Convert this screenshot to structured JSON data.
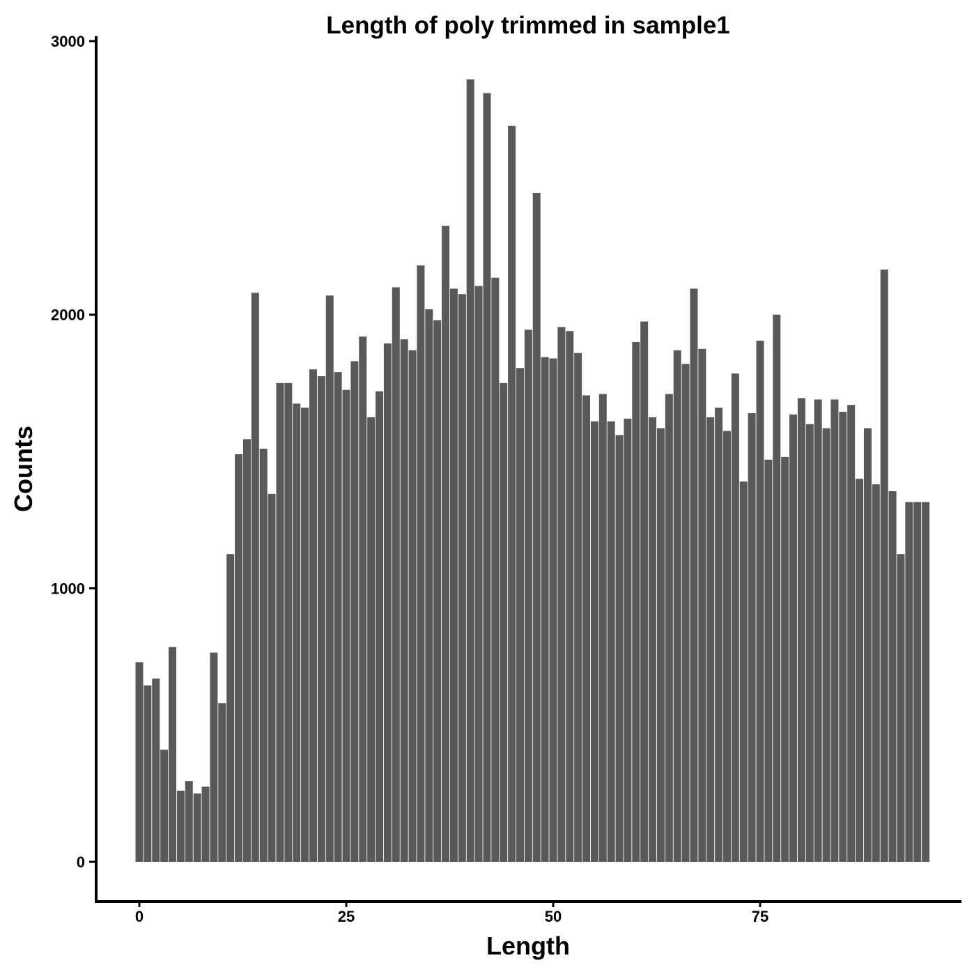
{
  "chart_data": {
    "type": "bar",
    "title": "Length of poly trimmed in  sample1",
    "xlabel": "Length",
    "ylabel": "Counts",
    "x_ticks": [
      "0",
      "25",
      "50",
      "75"
    ],
    "y_ticks": [
      "0",
      "1000",
      "2000",
      "3000"
    ],
    "xlim": [
      -5,
      100
    ],
    "ylim": [
      -140,
      3000
    ],
    "grid": false,
    "bar_color": "#595959",
    "x": [
      0,
      1,
      2,
      3,
      4,
      5,
      6,
      7,
      8,
      9,
      10,
      11,
      12,
      13,
      14,
      15,
      16,
      17,
      18,
      19,
      20,
      21,
      22,
      23,
      24,
      25,
      26,
      27,
      28,
      29,
      30,
      31,
      32,
      33,
      34,
      35,
      36,
      37,
      38,
      39,
      40,
      41,
      42,
      43,
      44,
      45,
      46,
      47,
      48,
      49,
      50,
      51,
      52,
      53,
      54,
      55,
      56,
      57,
      58,
      59,
      60,
      61,
      62,
      63,
      64,
      65,
      66,
      67,
      68,
      69,
      70,
      71,
      72,
      73,
      74,
      75,
      76,
      77,
      78,
      79,
      80,
      81,
      82,
      83,
      84,
      85,
      86,
      87,
      88,
      89,
      90,
      91,
      92,
      93,
      94,
      95
    ],
    "values": [
      730,
      645,
      670,
      410,
      785,
      260,
      295,
      250,
      275,
      765,
      580,
      1125,
      1490,
      1545,
      2080,
      1510,
      1345,
      1750,
      1750,
      1675,
      1660,
      1800,
      1775,
      2070,
      1790,
      1725,
      1830,
      1920,
      1625,
      1720,
      1895,
      2100,
      1910,
      1870,
      2180,
      2020,
      1980,
      2325,
      2095,
      2075,
      2860,
      2105,
      2810,
      2135,
      1750,
      2690,
      1805,
      1945,
      2445,
      1845,
      1840,
      1955,
      1940,
      1860,
      1705,
      1610,
      1710,
      1610,
      1560,
      1620,
      1900,
      1975,
      1625,
      1585,
      1710,
      1870,
      1820,
      2095,
      1875,
      1625,
      1660,
      1575,
      1785,
      1390,
      1640,
      1905,
      1470,
      2000,
      1480,
      1635,
      1695,
      1600,
      1690,
      1585,
      1690,
      1645,
      1670,
      1400,
      1585,
      1380,
      2165,
      1355,
      1125,
      1315,
      1315,
      1315
    ]
  }
}
